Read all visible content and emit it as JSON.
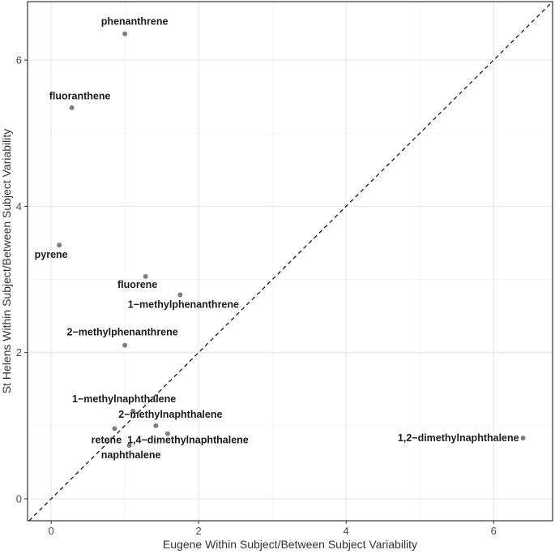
{
  "chart_data": {
    "type": "scatter",
    "xlabel": "Eugene Within Subject/Between Subject Variability",
    "ylabel": "St Helens Within Subject/Between Subject Variability",
    "xlim": [
      -0.32,
      6.8
    ],
    "ylim": [
      -0.3,
      6.8
    ],
    "x_ticks": [
      0,
      2,
      4,
      6
    ],
    "y_ticks": [
      0,
      2,
      4,
      6
    ],
    "grid": true,
    "reference_line": "y = x (dashed)",
    "point_color": "#7f7f7f",
    "points": [
      {
        "label": "phenanthrene",
        "x": 1.0,
        "y": 6.36
      },
      {
        "label": "fluoranthene",
        "x": 0.28,
        "y": 5.35
      },
      {
        "label": "pyrene",
        "x": 0.11,
        "y": 3.47
      },
      {
        "label": "fluorene",
        "x": 1.28,
        "y": 3.04
      },
      {
        "label": "1−methylphenanthrene",
        "x": 1.75,
        "y": 2.79
      },
      {
        "label": "2−methylphenanthrene",
        "x": 1.0,
        "y": 2.1
      },
      {
        "label": "1−methylnaphthalene",
        "x": 1.11,
        "y": 1.2
      },
      {
        "label": "2−methylnaphthalene",
        "x": 1.42,
        "y": 1.0
      },
      {
        "label": "retene",
        "x": 0.86,
        "y": 0.96
      },
      {
        "label": "1,4−dimethylnaphthalene",
        "x": 1.58,
        "y": 0.89
      },
      {
        "label": "naphthalene",
        "x": 1.06,
        "y": 0.73
      },
      {
        "label": "1,2−dimethylnaphthalene",
        "x": 6.4,
        "y": 0.83
      }
    ]
  }
}
